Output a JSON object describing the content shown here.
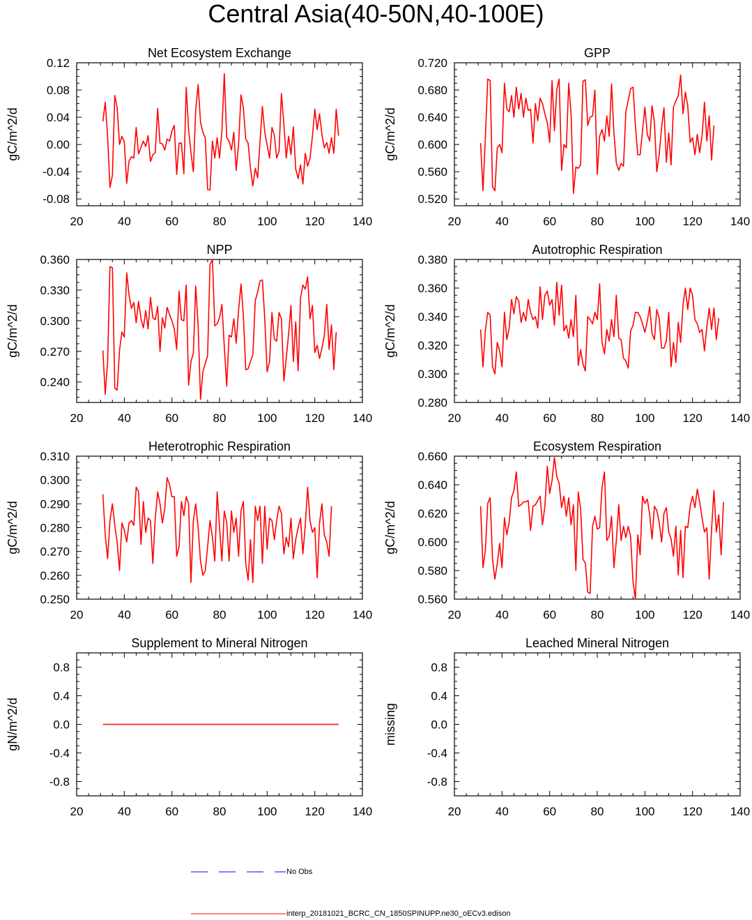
{
  "title": "Central Asia(40-50N,40-100E)",
  "colors": {
    "model": "#ff0000",
    "obs": "#0000ff",
    "axis": "#000000"
  },
  "legend": {
    "obs_label": "No Obs",
    "model_label": "interp_20181021_BCRC_CN_1850SPINUPP.ne30_oECv3.edison"
  },
  "chart_data": [
    {
      "type": "line",
      "title": "Net Ecosystem Exchange",
      "ylabel": "gC/m^2/d",
      "xlim": [
        20,
        140
      ],
      "ylim": [
        -0.09,
        0.12
      ],
      "xticks": [
        20,
        40,
        60,
        80,
        100,
        120,
        140
      ],
      "yticks": [
        -0.08,
        -0.04,
        0.0,
        0.04,
        0.08,
        0.12
      ],
      "ytick_labels": [
        "-0.08",
        "-0.04",
        "0.00",
        "0.04",
        "0.08",
        "0.12"
      ],
      "series": [
        {
          "x_start": 31,
          "x_step": 1,
          "values": [
            0.034,
            0.062,
            0.012,
            -0.063,
            -0.045,
            0.072,
            0.054,
            0.0,
            0.012,
            0.004,
            -0.057,
            -0.024,
            -0.018,
            -0.02,
            0.025,
            -0.014,
            -0.004,
            0.005,
            -0.003,
            0.013,
            -0.025,
            -0.015,
            -0.012,
            0.053,
            0.002,
            0.001,
            -0.008,
            0.008,
            0.005,
            0.02,
            0.028,
            -0.044,
            0.002,
            0.002,
            -0.043,
            0.084,
            0.022,
            -0.012,
            -0.04,
            0.05,
            0.088,
            0.033,
            0.018,
            0.01,
            -0.066,
            -0.067,
            0.005,
            -0.02,
            0.01,
            -0.02,
            0.02,
            0.104,
            0.01,
            0.005,
            -0.008,
            0.018,
            -0.038,
            0.0,
            0.073,
            0.054,
            0.008,
            0.002,
            -0.035,
            -0.061,
            -0.035,
            -0.049,
            0.005,
            0.056,
            0.018,
            -0.001,
            -0.02,
            0.025,
            0.014,
            -0.02,
            -0.01,
            0.075,
            0.03,
            -0.02,
            0.012,
            -0.015,
            0.026,
            -0.036,
            -0.05,
            -0.03,
            -0.058,
            -0.013,
            -0.032,
            -0.02,
            0.012,
            0.052,
            0.022,
            0.045,
            0.015,
            -0.005,
            0.003,
            -0.013,
            0.01,
            -0.013,
            0.052,
            0.013
          ]
        }
      ]
    },
    {
      "type": "line",
      "title": "GPP",
      "ylabel": "gC/m^2/d",
      "xlim": [
        20,
        140
      ],
      "ylim": [
        0.51,
        0.72
      ],
      "xticks": [
        20,
        40,
        60,
        80,
        100,
        120,
        140
      ],
      "yticks": [
        0.52,
        0.56,
        0.6,
        0.64,
        0.68,
        0.72
      ],
      "ytick_labels": [
        "0.520",
        "0.560",
        "0.600",
        "0.640",
        "0.680",
        "0.720"
      ],
      "series": [
        {
          "x_start": 31,
          "x_step": 1,
          "values": [
            0.602,
            0.532,
            0.61,
            0.696,
            0.694,
            0.538,
            0.532,
            0.595,
            0.6,
            0.588,
            0.69,
            0.652,
            0.648,
            0.672,
            0.64,
            0.684,
            0.652,
            0.675,
            0.64,
            0.668,
            0.65,
            0.652,
            0.602,
            0.66,
            0.635,
            0.668,
            0.66,
            0.645,
            0.632,
            0.603,
            0.694,
            0.62,
            0.681,
            0.696,
            0.562,
            0.6,
            0.595,
            0.69,
            0.645,
            0.528,
            0.567,
            0.565,
            0.57,
            0.693,
            0.695,
            0.628,
            0.64,
            0.642,
            0.68,
            0.556,
            0.612,
            0.622,
            0.605,
            0.642,
            0.612,
            0.689,
            0.617,
            0.573,
            0.562,
            0.572,
            0.568,
            0.648,
            0.665,
            0.682,
            0.684,
            0.628,
            0.585,
            0.585,
            0.62,
            0.655,
            0.615,
            0.605,
            0.657,
            0.632,
            0.56,
            0.585,
            0.625,
            0.654,
            0.574,
            0.617,
            0.57,
            0.655,
            0.664,
            0.672,
            0.702,
            0.645,
            0.677,
            0.657,
            0.603,
            0.61,
            0.585,
            0.615,
            0.588,
            0.612,
            0.662,
            0.605,
            0.642,
            0.577,
            0.628
          ]
        }
      ]
    },
    {
      "type": "line",
      "title": "NPP",
      "ylabel": "gC/m^2/d",
      "xlim": [
        20,
        140
      ],
      "ylim": [
        0.22,
        0.36
      ],
      "xticks": [
        20,
        40,
        60,
        80,
        100,
        120,
        140
      ],
      "yticks": [
        0.24,
        0.27,
        0.3,
        0.33,
        0.36
      ],
      "ytick_labels": [
        "0.240",
        "0.270",
        "0.300",
        "0.330",
        "0.360"
      ],
      "series": [
        {
          "x_start": 31,
          "x_step": 1,
          "values": [
            0.271,
            0.228,
            0.26,
            0.353,
            0.352,
            0.234,
            0.232,
            0.271,
            0.289,
            0.284,
            0.347,
            0.325,
            0.312,
            0.318,
            0.298,
            0.319,
            0.302,
            0.293,
            0.31,
            0.292,
            0.323,
            0.303,
            0.301,
            0.314,
            0.27,
            0.303,
            0.293,
            0.313,
            0.306,
            0.3,
            0.292,
            0.272,
            0.329,
            0.301,
            0.3,
            0.335,
            0.237,
            0.26,
            0.268,
            0.334,
            0.295,
            0.223,
            0.25,
            0.258,
            0.266,
            0.355,
            0.36,
            0.295,
            0.297,
            0.303,
            0.316,
            0.275,
            0.236,
            0.286,
            0.284,
            0.302,
            0.278,
            0.31,
            0.336,
            0.305,
            0.252,
            0.253,
            0.26,
            0.267,
            0.32,
            0.328,
            0.339,
            0.34,
            0.302,
            0.25,
            0.26,
            0.308,
            0.282,
            0.28,
            0.308,
            0.302,
            0.241,
            0.263,
            0.287,
            0.315,
            0.26,
            0.299,
            0.251,
            0.322,
            0.335,
            0.331,
            0.343,
            0.302,
            0.315,
            0.269,
            0.276,
            0.263,
            0.273,
            0.285,
            0.316,
            0.272,
            0.296,
            0.252,
            0.289
          ]
        }
      ]
    },
    {
      "type": "line",
      "title": "Autotrophic Respiration",
      "ylabel": "gC/m^2/d",
      "xlim": [
        20,
        140
      ],
      "ylim": [
        0.28,
        0.38
      ],
      "xticks": [
        20,
        40,
        60,
        80,
        100,
        120,
        140
      ],
      "yticks": [
        0.28,
        0.3,
        0.32,
        0.34,
        0.36,
        0.38
      ],
      "ytick_labels": [
        "0.280",
        "0.300",
        "0.320",
        "0.340",
        "0.360",
        "0.380"
      ],
      "series": [
        {
          "x_start": 31,
          "x_step": 1,
          "values": [
            0.331,
            0.305,
            0.33,
            0.343,
            0.341,
            0.305,
            0.3,
            0.322,
            0.316,
            0.305,
            0.343,
            0.324,
            0.332,
            0.352,
            0.342,
            0.354,
            0.351,
            0.336,
            0.343,
            0.337,
            0.352,
            0.343,
            0.338,
            0.34,
            0.332,
            0.361,
            0.338,
            0.355,
            0.358,
            0.348,
            0.352,
            0.334,
            0.364,
            0.341,
            0.362,
            0.33,
            0.334,
            0.325,
            0.338,
            0.326,
            0.355,
            0.306,
            0.317,
            0.307,
            0.302,
            0.34,
            0.338,
            0.335,
            0.343,
            0.338,
            0.363,
            0.322,
            0.314,
            0.331,
            0.323,
            0.338,
            0.326,
            0.355,
            0.325,
            0.324,
            0.311,
            0.309,
            0.304,
            0.33,
            0.334,
            0.343,
            0.343,
            0.34,
            0.335,
            0.329,
            0.337,
            0.347,
            0.328,
            0.324,
            0.345,
            0.339,
            0.318,
            0.318,
            0.323,
            0.343,
            0.305,
            0.322,
            0.308,
            0.336,
            0.322,
            0.348,
            0.36,
            0.345,
            0.36,
            0.355,
            0.338,
            0.335,
            0.329,
            0.331,
            0.316,
            0.333,
            0.346,
            0.331,
            0.346,
            0.324,
            0.339
          ]
        }
      ]
    },
    {
      "type": "line",
      "title": "Heterotrophic Respiration",
      "ylabel": "gC/m^2/d",
      "xlim": [
        20,
        140
      ],
      "ylim": [
        0.25,
        0.31
      ],
      "xticks": [
        20,
        40,
        60,
        80,
        100,
        120,
        140
      ],
      "yticks": [
        0.25,
        0.26,
        0.27,
        0.28,
        0.29,
        0.3,
        0.31
      ],
      "ytick_labels": [
        "0.250",
        "0.260",
        "0.270",
        "0.280",
        "0.290",
        "0.300",
        "0.310"
      ],
      "series": [
        {
          "x_start": 31,
          "x_step": 1,
          "values": [
            0.294,
            0.277,
            0.267,
            0.283,
            0.29,
            0.281,
            0.274,
            0.262,
            0.282,
            0.279,
            0.274,
            0.282,
            0.283,
            0.281,
            0.297,
            0.295,
            0.273,
            0.291,
            0.278,
            0.284,
            0.283,
            0.265,
            0.284,
            0.295,
            0.29,
            0.282,
            0.288,
            0.301,
            0.298,
            0.293,
            0.293,
            0.268,
            0.272,
            0.291,
            0.285,
            0.293,
            0.29,
            0.257,
            0.283,
            0.29,
            0.28,
            0.266,
            0.26,
            0.262,
            0.272,
            0.283,
            0.276,
            0.266,
            0.295,
            0.28,
            0.266,
            0.287,
            0.282,
            0.266,
            0.287,
            0.278,
            0.284,
            0.268,
            0.287,
            0.291,
            0.265,
            0.258,
            0.275,
            0.257,
            0.289,
            0.283,
            0.289,
            0.265,
            0.289,
            0.271,
            0.284,
            0.283,
            0.275,
            0.283,
            0.289,
            0.286,
            0.269,
            0.276,
            0.272,
            0.284,
            0.267,
            0.275,
            0.28,
            0.284,
            0.269,
            0.281,
            0.297,
            0.283,
            0.278,
            0.28,
            0.259,
            0.282,
            0.29,
            0.277,
            0.274,
            0.268,
            0.289
          ]
        }
      ]
    },
    {
      "type": "line",
      "title": "Ecosystem Respiration",
      "ylabel": "gC/m^2/d",
      "xlim": [
        20,
        140
      ],
      "ylim": [
        0.56,
        0.66
      ],
      "xticks": [
        20,
        40,
        60,
        80,
        100,
        120,
        140
      ],
      "yticks": [
        0.56,
        0.58,
        0.6,
        0.62,
        0.64,
        0.66
      ],
      "ytick_labels": [
        "0.560",
        "0.580",
        "0.600",
        "0.620",
        "0.640",
        "0.660"
      ],
      "series": [
        {
          "x_start": 31,
          "x_step": 1,
          "values": [
            0.625,
            0.582,
            0.594,
            0.627,
            0.631,
            0.588,
            0.574,
            0.585,
            0.599,
            0.582,
            0.617,
            0.605,
            0.614,
            0.631,
            0.636,
            0.649,
            0.625,
            0.626,
            0.628,
            0.628,
            0.629,
            0.608,
            0.625,
            0.626,
            0.629,
            0.632,
            0.612,
            0.625,
            0.653,
            0.634,
            0.643,
            0.659,
            0.646,
            0.641,
            0.624,
            0.632,
            0.618,
            0.631,
            0.612,
            0.626,
            0.58,
            0.635,
            0.623,
            0.588,
            0.585,
            0.565,
            0.564,
            0.611,
            0.618,
            0.609,
            0.61,
            0.638,
            0.649,
            0.601,
            0.604,
            0.618,
            0.582,
            0.601,
            0.626,
            0.601,
            0.611,
            0.603,
            0.611,
            0.604,
            0.572,
            0.56,
            0.605,
            0.591,
            0.632,
            0.627,
            0.63,
            0.619,
            0.602,
            0.625,
            0.622,
            0.614,
            0.6,
            0.62,
            0.624,
            0.607,
            0.602,
            0.59,
            0.611,
            0.577,
            0.608,
            0.575,
            0.611,
            0.61,
            0.625,
            0.632,
            0.624,
            0.637,
            0.628,
            0.617,
            0.607,
            0.61,
            0.574,
            0.609,
            0.636,
            0.607,
            0.619,
            0.591,
            0.628
          ]
        }
      ]
    },
    {
      "type": "line",
      "title": "Supplement to Mineral Nitrogen",
      "ylabel": "gN/m^2/d",
      "xlim": [
        20,
        140
      ],
      "ylim": [
        -1.0,
        1.0
      ],
      "xticks": [
        20,
        40,
        60,
        80,
        100,
        120,
        140
      ],
      "yticks": [
        -0.8,
        -0.4,
        0.0,
        0.4,
        0.8
      ],
      "ytick_labels": [
        "-0.8",
        "-0.4",
        "0.0",
        "0.4",
        "0.8"
      ],
      "series": [
        {
          "x": [
            31,
            130
          ],
          "values": [
            0.0,
            0.0
          ]
        }
      ]
    },
    {
      "type": "line",
      "title": "Leached Mineral Nitrogen",
      "ylabel": "missing",
      "xlim": [
        20,
        140
      ],
      "ylim": [
        -1.0,
        1.0
      ],
      "xticks": [
        20,
        40,
        60,
        80,
        100,
        120,
        140
      ],
      "yticks": [
        -0.8,
        -0.4,
        0.0,
        0.4,
        0.8
      ],
      "ytick_labels": [
        "-0.8",
        "-0.4",
        "0.0",
        "0.4",
        "0.8"
      ],
      "series": []
    }
  ]
}
